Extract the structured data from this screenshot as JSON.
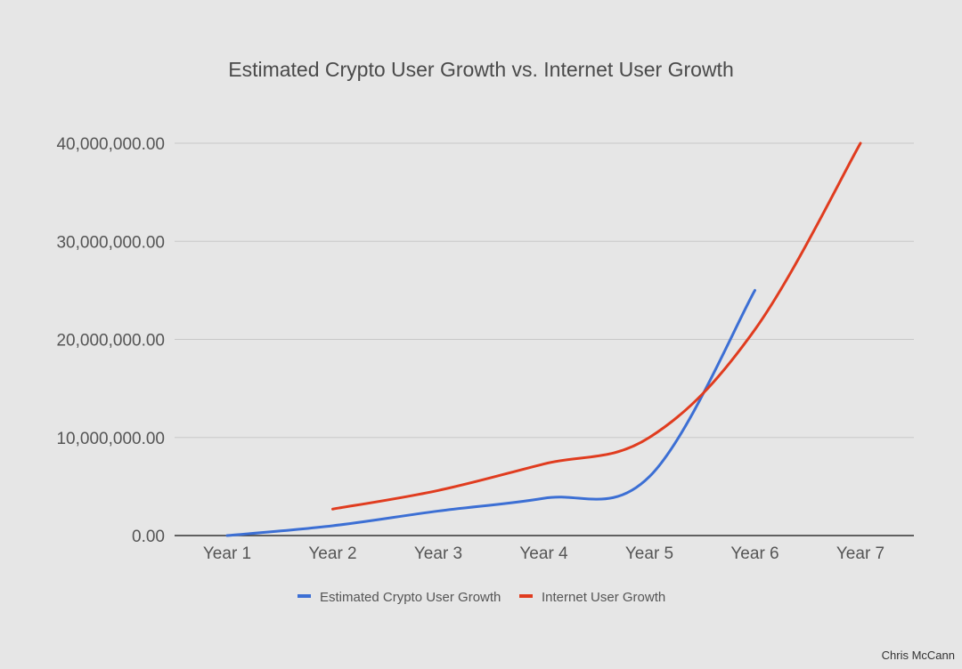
{
  "chart_data": {
    "type": "line",
    "title": "Estimated Crypto User Growth vs. Internet User Growth",
    "xlabel": "",
    "ylabel": "",
    "categories": [
      "Year 1",
      "Year 2",
      "Year 3",
      "Year 4",
      "Year 5",
      "Year 6",
      "Year 7"
    ],
    "ylim": [
      0,
      40000000
    ],
    "yticks": [
      0,
      10000000,
      20000000,
      30000000,
      40000000
    ],
    "ytick_labels": [
      "0.00",
      "10,000,000.00",
      "20,000,000.00",
      "30,000,000.00",
      "40,000,000.00"
    ],
    "grid": true,
    "legend_position": "bottom",
    "series": [
      {
        "name": "Estimated Crypto User Growth",
        "color": "#3c6fd4",
        "values": [
          0,
          1000000,
          2500000,
          3800000,
          6000000,
          25000000,
          null
        ]
      },
      {
        "name": "Internet User Growth",
        "color": "#e03c1f",
        "values": [
          null,
          2700000,
          4600000,
          7300000,
          10000000,
          21000000,
          40000000
        ]
      }
    ]
  },
  "credit": "Chris McCann"
}
